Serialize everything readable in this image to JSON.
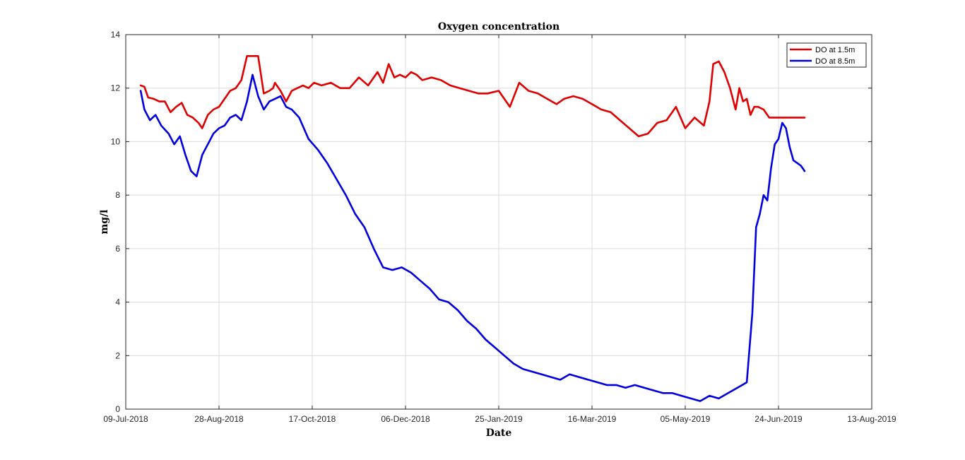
{
  "chart_data": {
    "type": "line",
    "title": "Oxygen concentration",
    "xlabel": "Date",
    "ylabel": "mg/l",
    "xlim": [
      "2018-07-09",
      "2019-08-13"
    ],
    "ylim": [
      0,
      14
    ],
    "xticks": [
      "09-Jul-2018",
      "28-Aug-2018",
      "17-Oct-2018",
      "06-Dec-2018",
      "25-Jan-2019",
      "16-Mar-2019",
      "05-May-2019",
      "24-Jun-2019",
      "13-Aug-2019"
    ],
    "yticks": [
      0,
      2,
      4,
      6,
      8,
      10,
      12,
      14
    ],
    "grid": true,
    "legend_position": "top-right",
    "series": [
      {
        "name": "DO at 1.5m",
        "color": "#e00000",
        "x": [
          "2018-07-17",
          "2018-07-19",
          "2018-07-21",
          "2018-07-24",
          "2018-07-27",
          "2018-07-30",
          "2018-08-02",
          "2018-08-05",
          "2018-08-08",
          "2018-08-11",
          "2018-08-14",
          "2018-08-17",
          "2018-08-19",
          "2018-08-22",
          "2018-08-25",
          "2018-08-28",
          "2018-08-31",
          "2018-09-03",
          "2018-09-06",
          "2018-09-09",
          "2018-09-12",
          "2018-09-15",
          "2018-09-18",
          "2018-09-21",
          "2018-09-24",
          "2018-09-26",
          "2018-09-27",
          "2018-09-30",
          "2018-10-03",
          "2018-10-06",
          "2018-10-09",
          "2018-10-12",
          "2018-10-15",
          "2018-10-18",
          "2018-10-22",
          "2018-10-27",
          "2018-11-01",
          "2018-11-06",
          "2018-11-11",
          "2018-11-16",
          "2018-11-21",
          "2018-11-24",
          "2018-11-27",
          "2018-11-30",
          "2018-12-03",
          "2018-12-06",
          "2018-12-09",
          "2018-12-12",
          "2018-12-15",
          "2018-12-20",
          "2018-12-25",
          "2018-12-30",
          "2019-01-04",
          "2019-01-09",
          "2019-01-14",
          "2019-01-19",
          "2019-01-25",
          "2019-01-31",
          "2019-02-05",
          "2019-02-10",
          "2019-02-15",
          "2019-02-20",
          "2019-02-25",
          "2019-03-01",
          "2019-03-06",
          "2019-03-11",
          "2019-03-16",
          "2019-03-21",
          "2019-03-26",
          "2019-03-31",
          "2019-04-05",
          "2019-04-10",
          "2019-04-15",
          "2019-04-20",
          "2019-04-25",
          "2019-04-30",
          "2019-05-05",
          "2019-05-10",
          "2019-05-15",
          "2019-05-18",
          "2019-05-20",
          "2019-05-23",
          "2019-05-26",
          "2019-05-29",
          "2019-06-01",
          "2019-06-03",
          "2019-06-05",
          "2019-06-07",
          "2019-06-09",
          "2019-06-11",
          "2019-06-13",
          "2019-06-16",
          "2019-06-19",
          "2019-06-22",
          "2019-06-25",
          "2019-06-28",
          "2019-07-01",
          "2019-07-04",
          "2019-07-08"
        ],
        "y": [
          12.1,
          12.05,
          11.65,
          11.6,
          11.5,
          11.5,
          11.1,
          11.3,
          11.45,
          11.0,
          10.9,
          10.7,
          10.5,
          11.0,
          11.2,
          11.3,
          11.6,
          11.9,
          12.0,
          12.3,
          13.2,
          13.2,
          13.2,
          11.8,
          11.9,
          12.0,
          12.2,
          11.9,
          11.5,
          11.9,
          12.0,
          12.1,
          12.0,
          12.2,
          12.1,
          12.2,
          12.0,
          12.0,
          12.4,
          12.1,
          12.6,
          12.2,
          12.9,
          12.4,
          12.5,
          12.4,
          12.6,
          12.5,
          12.3,
          12.4,
          12.3,
          12.1,
          12.0,
          11.9,
          11.8,
          11.8,
          11.9,
          11.3,
          12.2,
          11.9,
          11.8,
          11.6,
          11.4,
          11.6,
          11.7,
          11.6,
          11.4,
          11.2,
          11.1,
          10.8,
          10.5,
          10.2,
          10.3,
          10.7,
          10.8,
          11.3,
          10.5,
          10.9,
          10.6,
          11.5,
          12.9,
          13.0,
          12.6,
          12.0,
          11.2,
          12.0,
          11.5,
          11.6,
          11.0,
          11.3,
          11.3,
          11.2,
          10.9,
          10.9,
          10.9,
          10.9,
          10.9,
          10.9,
          10.9
        ],
        "_note": ""
      },
      {
        "name": "DO at 8.5m",
        "color": "#0000e0",
        "x": [
          "2018-07-17",
          "2018-07-19",
          "2018-07-22",
          "2018-07-25",
          "2018-07-28",
          "2018-08-01",
          "2018-08-04",
          "2018-08-07",
          "2018-08-10",
          "2018-08-13",
          "2018-08-16",
          "2018-08-19",
          "2018-08-22",
          "2018-08-25",
          "2018-08-28",
          "2018-08-31",
          "2018-09-03",
          "2018-09-06",
          "2018-09-09",
          "2018-09-12",
          "2018-09-15",
          "2018-09-18",
          "2018-09-21",
          "2018-09-24",
          "2018-09-27",
          "2018-09-30",
          "2018-10-03",
          "2018-10-06",
          "2018-10-10",
          "2018-10-15",
          "2018-10-20",
          "2018-10-25",
          "2018-10-30",
          "2018-11-04",
          "2018-11-09",
          "2018-11-14",
          "2018-11-19",
          "2018-11-24",
          "2018-11-29",
          "2018-12-04",
          "2018-12-09",
          "2018-12-14",
          "2018-12-19",
          "2018-12-24",
          "2018-12-29",
          "2019-01-03",
          "2019-01-08",
          "2019-01-13",
          "2019-01-18",
          "2019-01-23",
          "2019-01-28",
          "2019-02-02",
          "2019-02-07",
          "2019-02-12",
          "2019-02-17",
          "2019-02-22",
          "2019-02-27",
          "2019-03-04",
          "2019-03-09",
          "2019-03-14",
          "2019-03-19",
          "2019-03-24",
          "2019-03-29",
          "2019-04-03",
          "2019-04-08",
          "2019-04-13",
          "2019-04-18",
          "2019-04-23",
          "2019-04-28",
          "2019-05-03",
          "2019-05-08",
          "2019-05-13",
          "2019-05-18",
          "2019-05-23",
          "2019-05-28",
          "2019-06-02",
          "2019-06-07",
          "2019-06-10",
          "2019-06-12",
          "2019-06-14",
          "2019-06-16",
          "2019-06-18",
          "2019-06-20",
          "2019-06-22",
          "2019-06-24",
          "2019-06-26",
          "2019-06-28",
          "2019-06-30",
          "2019-07-02",
          "2019-07-04",
          "2019-07-06",
          "2019-07-08"
        ],
        "y": [
          11.9,
          11.2,
          10.8,
          11.0,
          10.6,
          10.3,
          9.9,
          10.2,
          9.5,
          8.9,
          8.7,
          9.5,
          9.9,
          10.3,
          10.5,
          10.6,
          10.9,
          11.0,
          10.8,
          11.5,
          12.5,
          11.7,
          11.2,
          11.5,
          11.6,
          11.7,
          11.3,
          11.2,
          10.9,
          10.1,
          9.7,
          9.2,
          8.6,
          8.0,
          7.3,
          6.8,
          6.0,
          5.3,
          5.2,
          5.3,
          5.1,
          4.8,
          4.5,
          4.1,
          4.0,
          3.7,
          3.3,
          3.0,
          2.6,
          2.3,
          2.0,
          1.7,
          1.5,
          1.4,
          1.3,
          1.2,
          1.1,
          1.3,
          1.2,
          1.1,
          1.0,
          0.9,
          0.9,
          0.8,
          0.9,
          0.8,
          0.7,
          0.6,
          0.6,
          0.5,
          0.4,
          0.3,
          0.5,
          0.4,
          0.6,
          0.8,
          1.0,
          3.6,
          6.8,
          7.3,
          8.0,
          7.8,
          9.0,
          9.9,
          10.1,
          10.7,
          10.5,
          9.8,
          9.3,
          9.2,
          9.1,
          8.9
        ]
      }
    ]
  }
}
